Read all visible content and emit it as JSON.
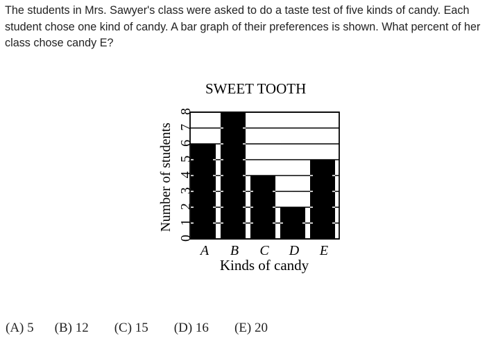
{
  "question": {
    "text": "The students in Mrs. Sawyer's class were asked to do a taste test of five kinds of candy. Each student chose one kind of candy. A bar graph of their preferences is shown. What percent of her class chose candy E?"
  },
  "chart_data": {
    "type": "bar",
    "title": "SWEET TOOTH",
    "xlabel": "Kinds of candy",
    "ylabel": "Number of students",
    "categories": [
      "A",
      "B",
      "C",
      "D",
      "E"
    ],
    "values": [
      6,
      8,
      4,
      2,
      5
    ],
    "y_ticks": [
      "0",
      "1",
      "2",
      "3",
      "4",
      "5",
      "6",
      "7",
      "8"
    ],
    "ylim": [
      0,
      8
    ],
    "grid": true,
    "bar_color": "#000000"
  },
  "choices": [
    {
      "label": "(A) 5"
    },
    {
      "label": "(B) 12"
    },
    {
      "label": "(C) 15"
    },
    {
      "label": "(D) 16"
    },
    {
      "label": "(E) 20"
    }
  ]
}
